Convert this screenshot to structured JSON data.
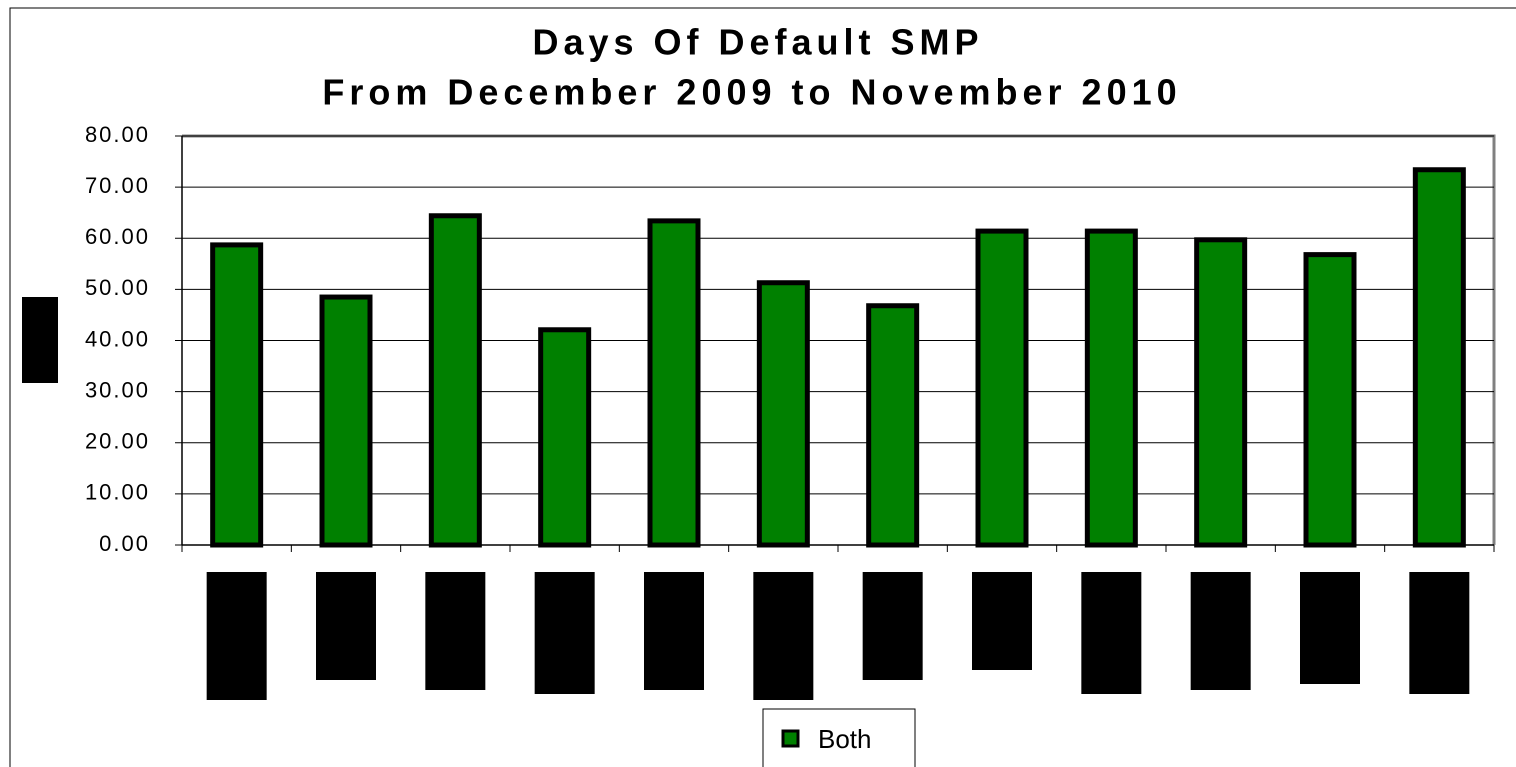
{
  "chart_data": {
    "type": "bar",
    "title": "Days Of Default SMP",
    "subtitle": "From December 2009 to November 2010",
    "categories": [
      null,
      null,
      null,
      null,
      null,
      null,
      null,
      null,
      null,
      null,
      null,
      null
    ],
    "series": [
      {
        "name": "Both",
        "color": "#008000",
        "values": [
          58.7,
          48.5,
          64.4,
          42.1,
          63.4,
          51.3,
          46.8,
          61.4,
          61.4,
          59.7,
          56.8,
          73.4
        ]
      }
    ],
    "ylim": [
      0,
      80
    ],
    "yticks": [
      {
        "value": 0,
        "label": "0.00"
      },
      {
        "value": 10,
        "label": "10.00"
      },
      {
        "value": 20,
        "label": "20.00"
      },
      {
        "value": 30,
        "label": "30.00"
      },
      {
        "value": 40,
        "label": "40.00"
      },
      {
        "value": 50,
        "label": "50.00"
      },
      {
        "value": 60,
        "label": "60.00"
      },
      {
        "value": 70,
        "label": "70.00"
      },
      {
        "value": 80,
        "label": "80.00"
      }
    ],
    "grid": true,
    "legend": "bottom"
  }
}
